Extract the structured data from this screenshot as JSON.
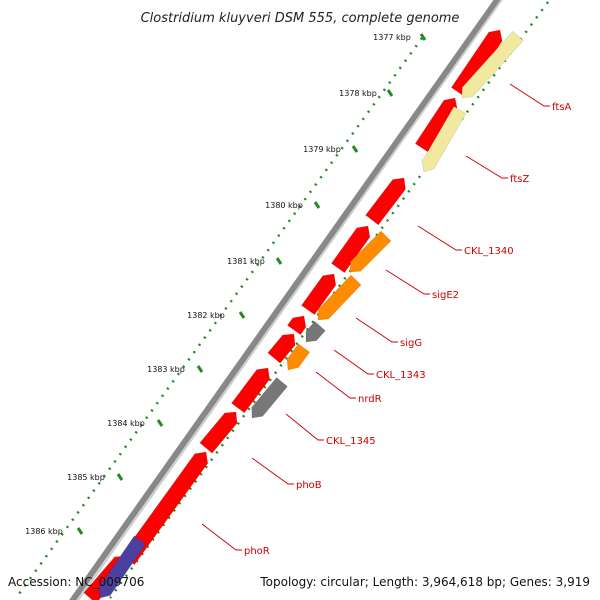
{
  "title": "Clostridium kluyveri DSM 555, complete genome",
  "footer": {
    "accession": "Accession: NC_009706",
    "summary": "Topology: circular; Length: 3,964,618 bp; Genes: 3,919"
  },
  "ticks": [
    "1377 kbp",
    "1378 kbp",
    "1379 kbp",
    "1380 kbp",
    "1381 kbp",
    "1382 kbp",
    "1383 kbp",
    "1384 kbp",
    "1385 kbp",
    "1386 kbp"
  ],
  "gene_labels": [
    "ftsA",
    "ftsZ",
    "CKL_1340",
    "sigE2",
    "sigG",
    "CKL_1343",
    "nrdR",
    "CKL_1345",
    "phoB",
    "phoR"
  ],
  "colors": {
    "gene_red": "#ff0000",
    "gene_orange": "#ff8c00",
    "gene_gray": "#777777",
    "gene_pale": "#f2e9a0",
    "gene_purple": "#4b3fa0",
    "backbone": "#888888",
    "tick_green": "#228b22",
    "label_red": "#cc0000"
  }
}
